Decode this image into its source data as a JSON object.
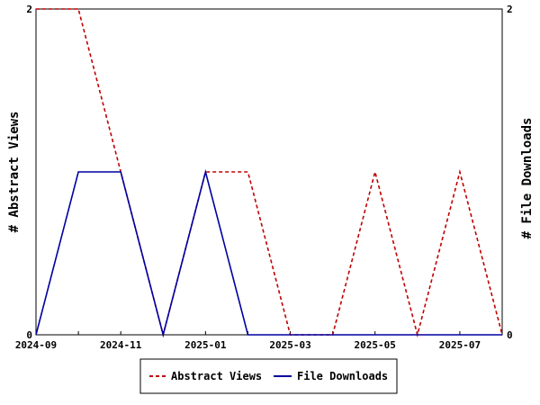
{
  "chart_data": {
    "type": "line",
    "x": [
      "2024-09",
      "2024-10",
      "2024-11",
      "2024-12",
      "2025-01",
      "2025-02",
      "2025-03",
      "2025-04",
      "2025-05",
      "2025-06",
      "2025-07",
      "2025-08"
    ],
    "x_tick_labels": [
      "2024-09",
      "2024-11",
      "2025-01",
      "2025-03",
      "2025-05",
      "2025-07"
    ],
    "ylabel_left": "# Abstract Views",
    "ylabel_right": "# File Downloads",
    "ylim_left": [
      0,
      2
    ],
    "ylim_right": [
      0,
      2
    ],
    "y_tick_labels_left": [
      "2",
      "0"
    ],
    "y_tick_labels_right": [
      "2",
      "0"
    ],
    "grid": false,
    "legend_position": "bottom",
    "series": [
      {
        "name": "Abstract Views",
        "axis": "left",
        "style": "dashed",
        "color": "#c00000",
        "values": [
          2,
          2,
          1,
          0,
          1,
          1,
          0,
          0,
          1,
          0,
          1,
          0
        ]
      },
      {
        "name": "File Downloads",
        "axis": "right",
        "style": "solid",
        "color": "#0000a0",
        "values": [
          0,
          1,
          1,
          0,
          1,
          0,
          0,
          0,
          0,
          0,
          0,
          0
        ]
      }
    ]
  }
}
